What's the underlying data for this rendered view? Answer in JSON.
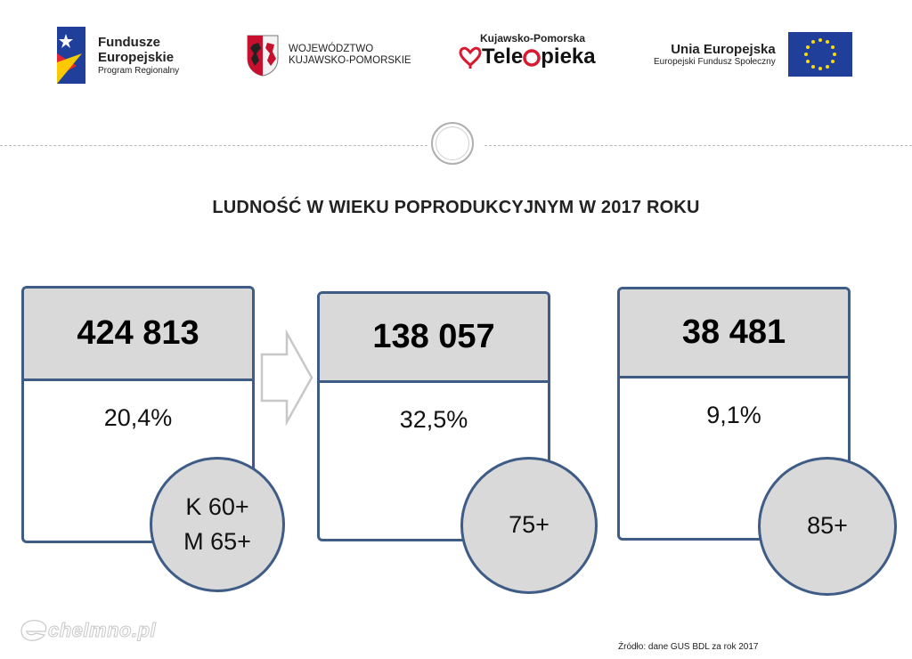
{
  "logos": {
    "fundusze": {
      "line1": "Fundusze",
      "line2": "Europejskie",
      "line3": "Program Regionalny"
    },
    "wojewodztwo": {
      "line1": "WOJEWÓDZTWO",
      "line2": "KUJAWSKO-POMORSKIE"
    },
    "teleopieka": {
      "line1": "Kujawsko-Pomorska",
      "line2_a": "Tele",
      "line2_b": "pieka"
    },
    "ue": {
      "line1": "Unia Europejska",
      "line2": "Europejski Fundusz Społeczny"
    }
  },
  "title": "LUDNOŚĆ W WIEKU POPRODUKCYJNYM W 2017 ROKU",
  "cards": [
    {
      "value": "424 813",
      "percent": "20,4%",
      "badge_line1": "K 60+",
      "badge_line2": "M 65+"
    },
    {
      "value": "138 057",
      "percent": "32,5%",
      "badge_line1": "75+"
    },
    {
      "value": "38 481",
      "percent": "9,1%",
      "badge_line1": "85+"
    }
  ],
  "watermark": "chelmno.pl",
  "source": "Źródło: dane GUS BDL za rok 2017",
  "colors": {
    "card_border": "#3e5c86",
    "card_fill": "#d9d9d9",
    "eu_blue": "#1f3f9a",
    "eu_star": "#ffdd00",
    "tele_red": "#d71a30"
  }
}
